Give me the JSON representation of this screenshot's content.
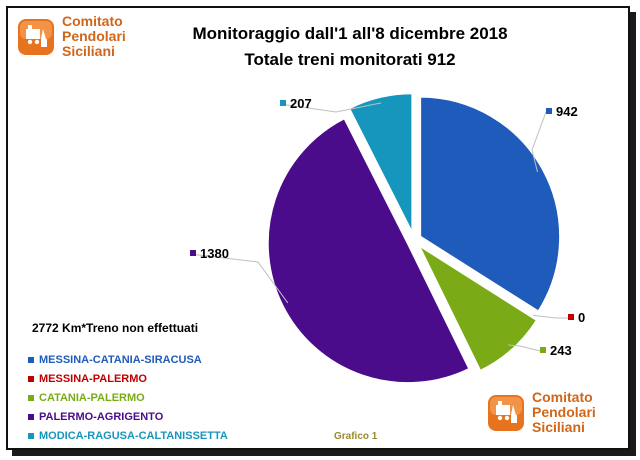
{
  "logo": {
    "line1": "Comitato",
    "line2": "Pendolari",
    "line3": "Siciliani"
  },
  "title_line1": "Monitoraggio dall'1 all'8 dicembre 2018",
  "title_line2": "Totale treni monitorati 912",
  "km_note": "2772  Km*Treno non effettuati",
  "footer": "Grafico 1",
  "colors": {
    "logo_orange": "#d0661a",
    "leader": "#bfbfbf"
  },
  "chart_data": {
    "type": "pie",
    "title": "Monitoraggio dall'1 all'8 dicembre 2018",
    "subtitle": "Totale treni monitorati 912",
    "legend_placement": "bottom-left",
    "slices": [
      {
        "name": "MESSINA-CATANIA-SIRACUSA",
        "value": 942,
        "label": "942",
        "color": "#1f5bbb"
      },
      {
        "name": "MESSINA-PALERMO",
        "value": 0,
        "label": "0",
        "color": "#c00000"
      },
      {
        "name": "CATANIA-PALERMO",
        "value": 243,
        "label": "243",
        "color": "#7aab17"
      },
      {
        "name": "PALERMO-AGRIGENTO",
        "value": 1380,
        "label": "1380",
        "color": "#4b0c8c"
      },
      {
        "name": "MODICA-RAGUSA-CALTANISSETTA",
        "value": 207,
        "label": "207",
        "color": "#1796bd"
      }
    ]
  }
}
